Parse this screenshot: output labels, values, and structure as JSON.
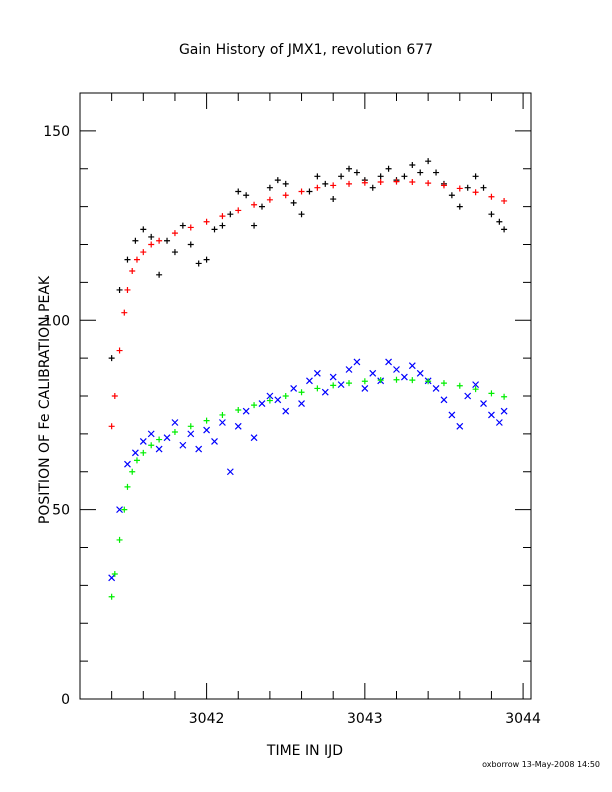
{
  "chart_data": {
    "type": "scatter",
    "title": "Gain History of JMX1, revolution 677",
    "xlabel": "TIME IN IJD",
    "ylabel": "POSITION OF Fe CALIBRATION PEAK",
    "xlim": [
      3041.2,
      3044.05
    ],
    "ylim": [
      0,
      160
    ],
    "xticks": [
      3042,
      3043,
      3044
    ],
    "yticks": [
      0,
      50,
      100,
      150
    ],
    "grid": false,
    "series": [
      {
        "marker": "+",
        "color": "#000000",
        "x": [
          3041.4,
          3041.45,
          3041.5,
          3041.55,
          3041.6,
          3041.65,
          3041.7,
          3041.75,
          3041.8,
          3041.85,
          3041.9,
          3041.95,
          3042.0,
          3042.05,
          3042.1,
          3042.15,
          3042.2,
          3042.25,
          3042.3,
          3042.35,
          3042.4,
          3042.45,
          3042.5,
          3042.55,
          3042.6,
          3042.65,
          3042.7,
          3042.75,
          3042.8,
          3042.85,
          3042.9,
          3042.95,
          3043.0,
          3043.05,
          3043.1,
          3043.15,
          3043.2,
          3043.25,
          3043.3,
          3043.35,
          3043.4,
          3043.45,
          3043.5,
          3043.55,
          3043.6,
          3043.65,
          3043.7,
          3043.75,
          3043.8,
          3043.85,
          3043.88
        ],
        "y": [
          90,
          108,
          116,
          121,
          124,
          122,
          112,
          121,
          118,
          125,
          120,
          115,
          116,
          124,
          125,
          128,
          134,
          133,
          125,
          130,
          135,
          137,
          136,
          131,
          128,
          134,
          138,
          136,
          132,
          138,
          140,
          139,
          137,
          135,
          138,
          140,
          137,
          138,
          141,
          139,
          142,
          139,
          136,
          133,
          130,
          135,
          138,
          135,
          128,
          126,
          124
        ]
      },
      {
        "marker": "+",
        "color": "#ff0000",
        "x": [
          3041.4,
          3041.42,
          3041.45,
          3041.48,
          3041.5,
          3041.53,
          3041.56,
          3041.6,
          3041.65,
          3041.7,
          3041.8,
          3041.9,
          3042.0,
          3042.1,
          3042.2,
          3042.3,
          3042.4,
          3042.5,
          3042.6,
          3042.7,
          3042.8,
          3042.9,
          3043.0,
          3043.1,
          3043.2,
          3043.3,
          3043.4,
          3043.5,
          3043.6,
          3043.7,
          3043.8,
          3043.88
        ],
        "y": [
          72,
          80,
          92,
          102,
          108,
          113,
          116,
          118,
          120,
          121,
          123,
          124.5,
          126,
          127.5,
          129,
          130.5,
          131.8,
          133,
          134,
          135,
          135.6,
          136,
          136.3,
          136.5,
          136.6,
          136.5,
          136.2,
          135.6,
          134.8,
          133.8,
          132.6,
          131.5
        ]
      },
      {
        "marker": "x",
        "color": "#0000ff",
        "x": [
          3041.4,
          3041.45,
          3041.5,
          3041.55,
          3041.6,
          3041.65,
          3041.7,
          3041.75,
          3041.8,
          3041.85,
          3041.9,
          3041.95,
          3042.0,
          3042.05,
          3042.1,
          3042.15,
          3042.2,
          3042.25,
          3042.3,
          3042.35,
          3042.4,
          3042.45,
          3042.5,
          3042.55,
          3042.6,
          3042.65,
          3042.7,
          3042.75,
          3042.8,
          3042.85,
          3042.9,
          3042.95,
          3043.0,
          3043.05,
          3043.1,
          3043.15,
          3043.2,
          3043.25,
          3043.3,
          3043.35,
          3043.4,
          3043.45,
          3043.5,
          3043.55,
          3043.6,
          3043.65,
          3043.7,
          3043.75,
          3043.8,
          3043.85,
          3043.88
        ],
        "y": [
          32,
          50,
          62,
          65,
          68,
          70,
          66,
          69,
          73,
          67,
          70,
          66,
          71,
          68,
          73,
          60,
          72,
          76,
          69,
          78,
          80,
          79,
          76,
          82,
          78,
          84,
          86,
          81,
          85,
          83,
          87,
          89,
          82,
          86,
          84,
          89,
          87,
          85,
          88,
          86,
          84,
          82,
          79,
          75,
          72,
          80,
          83,
          78,
          75,
          73,
          76
        ]
      },
      {
        "marker": "+",
        "color": "#00ee00",
        "x": [
          3041.4,
          3041.42,
          3041.45,
          3041.48,
          3041.5,
          3041.53,
          3041.56,
          3041.6,
          3041.65,
          3041.7,
          3041.8,
          3041.9,
          3042.0,
          3042.1,
          3042.2,
          3042.3,
          3042.4,
          3042.5,
          3042.6,
          3042.7,
          3042.8,
          3042.9,
          3043.0,
          3043.1,
          3043.2,
          3043.3,
          3043.4,
          3043.5,
          3043.6,
          3043.7,
          3043.8,
          3043.88
        ],
        "y": [
          27,
          33,
          42,
          50,
          56,
          60,
          63,
          65,
          67,
          68.5,
          70.5,
          72,
          73.5,
          75,
          76.3,
          77.6,
          78.8,
          80,
          81,
          82,
          82.8,
          83.4,
          83.9,
          84.2,
          84.3,
          84.2,
          83.9,
          83.4,
          82.7,
          81.8,
          80.7,
          79.8
        ]
      }
    ]
  },
  "footer": "oxborrow 13-May-2008 14:50"
}
